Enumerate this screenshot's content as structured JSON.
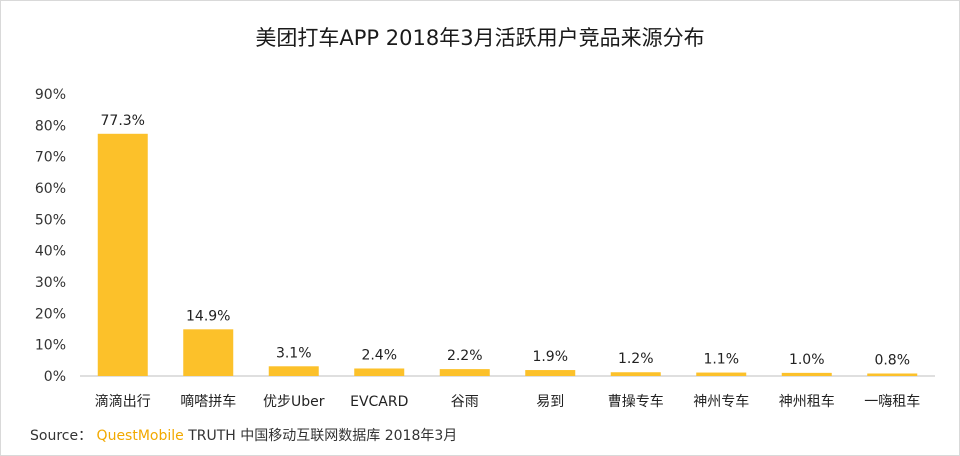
{
  "chart_data": {
    "type": "bar",
    "title": "美团打车APP 2018年3月活跃用户竞品来源分布",
    "categories": [
      "滴滴出行",
      "嘀嗒拼车",
      "优步Uber",
      "EVCARD",
      "谷雨",
      "易到",
      "曹操专车",
      "神州专车",
      "神州租车",
      "一嗨租车"
    ],
    "values": [
      77.3,
      14.9,
      3.1,
      2.4,
      2.2,
      1.9,
      1.2,
      1.1,
      1.0,
      0.8
    ],
    "data_labels": [
      "77.3%",
      "14.9%",
      "3.1%",
      "2.4%",
      "2.2%",
      "1.9%",
      "1.2%",
      "1.1%",
      "1.0%",
      "0.8%"
    ],
    "ylim": [
      0,
      90
    ],
    "yticks": [
      "0%",
      "10%",
      "20%",
      "30%",
      "40%",
      "50%",
      "60%",
      "70%",
      "80%",
      "90%"
    ],
    "xlabel": "",
    "ylabel": "",
    "grid": false,
    "bar_color": "#fcc12a"
  },
  "source": {
    "prefix": "Source：",
    "brand": "QuestMobile",
    "rest": "TRUTH 中国移动互联网数据库 2018年3月"
  }
}
